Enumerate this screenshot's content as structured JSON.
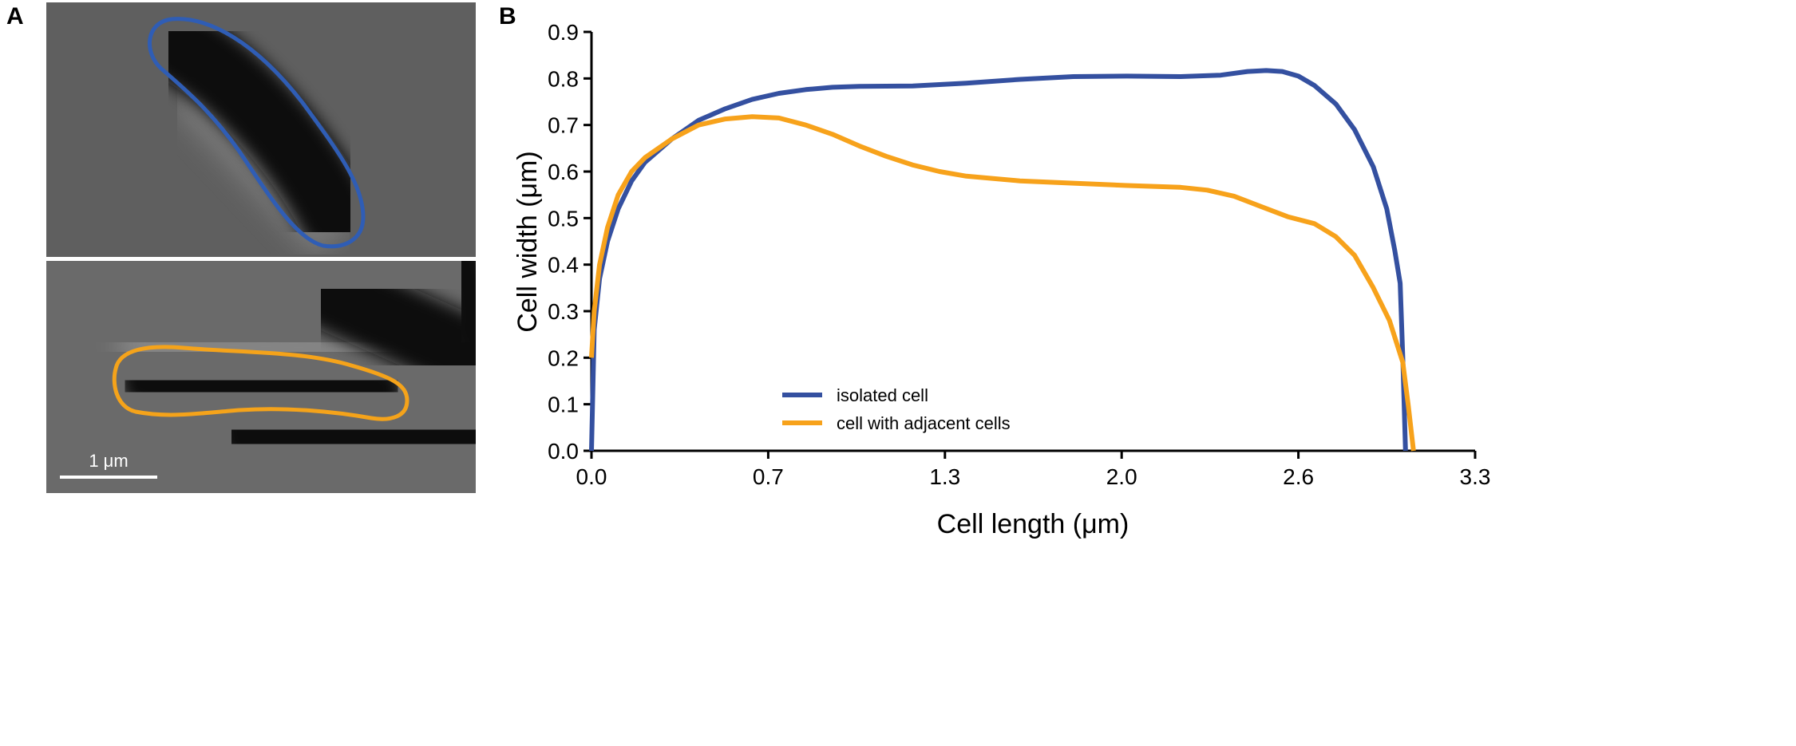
{
  "panels": {
    "a_label": "A",
    "b_label": "B"
  },
  "micrograph": {
    "scale_bar_label": "1 μm",
    "outline_colors": {
      "isolated": "#2f5db5",
      "adjacent": "#f5a31a"
    }
  },
  "chart_data": {
    "type": "line",
    "xlabel": "Cell length (μm)",
    "ylabel": "Cell width (μm)",
    "xlim": [
      0,
      3.3
    ],
    "ylim": [
      0,
      0.9
    ],
    "x_ticks": [
      0,
      0.66,
      1.32,
      1.98,
      2.64,
      3.3
    ],
    "x_tick_labels": [
      "0.0",
      "0.7",
      "1.3",
      "2.0",
      "2.6",
      "3.3"
    ],
    "y_ticks": [
      0,
      0.1,
      0.2,
      0.3,
      0.4,
      0.5,
      0.6,
      0.7,
      0.8,
      0.9
    ],
    "y_tick_labels": [
      "0.0",
      "0.1",
      "0.2",
      "0.3",
      "0.4",
      "0.5",
      "0.6",
      "0.7",
      "0.8",
      "0.9"
    ],
    "grid": false,
    "legend_position": "bottom-center",
    "series": [
      {
        "name": "isolated cell",
        "color": "#3450a0",
        "x": [
          0,
          0.01,
          0.03,
          0.06,
          0.1,
          0.15,
          0.2,
          0.3,
          0.4,
          0.5,
          0.6,
          0.7,
          0.8,
          0.9,
          1.0,
          1.2,
          1.4,
          1.6,
          1.8,
          2.0,
          2.2,
          2.35,
          2.45,
          2.52,
          2.58,
          2.64,
          2.7,
          2.78,
          2.85,
          2.92,
          2.97,
          3.0,
          3.02,
          3.03,
          3.04
        ],
        "y": [
          0,
          0.26,
          0.37,
          0.45,
          0.52,
          0.58,
          0.62,
          0.67,
          0.71,
          0.735,
          0.755,
          0.768,
          0.776,
          0.781,
          0.783,
          0.784,
          0.79,
          0.798,
          0.804,
          0.805,
          0.804,
          0.807,
          0.815,
          0.817,
          0.815,
          0.805,
          0.785,
          0.745,
          0.69,
          0.61,
          0.52,
          0.43,
          0.36,
          0.2,
          0
        ]
      },
      {
        "name": "cell with adjacent cells",
        "color": "#f7a21b",
        "x": [
          0,
          0.01,
          0.03,
          0.06,
          0.1,
          0.15,
          0.2,
          0.3,
          0.4,
          0.5,
          0.6,
          0.7,
          0.8,
          0.9,
          1.0,
          1.1,
          1.2,
          1.3,
          1.4,
          1.6,
          1.8,
          2.0,
          2.2,
          2.3,
          2.4,
          2.5,
          2.6,
          2.7,
          2.78,
          2.85,
          2.92,
          2.98,
          3.03,
          3.05,
          3.07
        ],
        "y": [
          0.2,
          0.3,
          0.4,
          0.48,
          0.55,
          0.6,
          0.63,
          0.67,
          0.7,
          0.713,
          0.718,
          0.715,
          0.7,
          0.68,
          0.655,
          0.633,
          0.614,
          0.6,
          0.59,
          0.58,
          0.575,
          0.57,
          0.566,
          0.56,
          0.547,
          0.525,
          0.503,
          0.488,
          0.46,
          0.42,
          0.35,
          0.28,
          0.19,
          0.1,
          0
        ]
      }
    ]
  }
}
